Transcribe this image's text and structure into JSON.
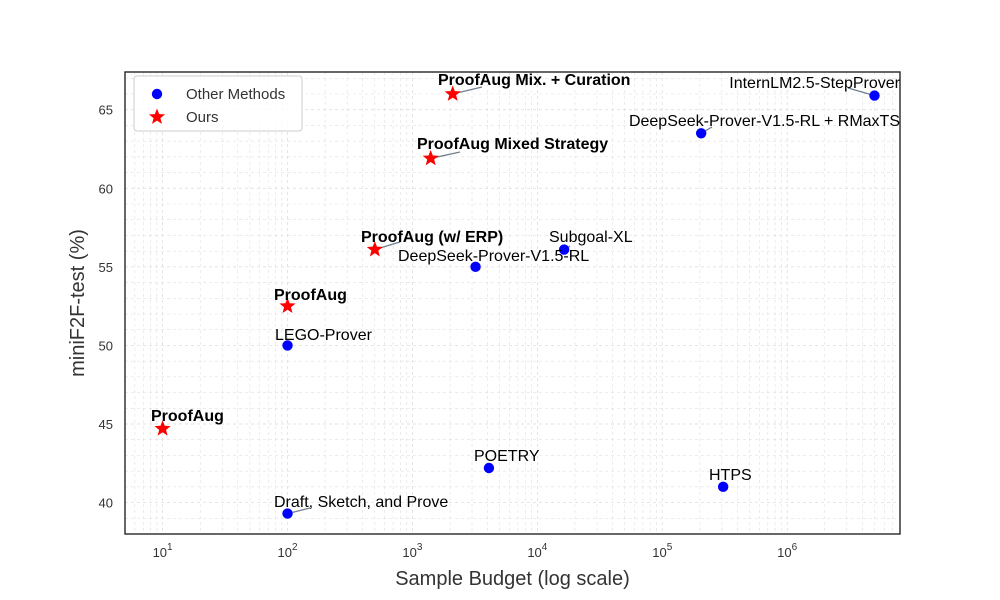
{
  "chart_data": {
    "type": "scatter",
    "xlabel": "Sample Budget (log scale)",
    "ylabel": "miniF2F-test (%)",
    "xscale": "log",
    "xlim": [
      5,
      8000000
    ],
    "ylim": [
      38,
      67.4
    ],
    "grid": true,
    "legend_position": "top-left",
    "x_ticks": [
      {
        "value": 10,
        "exp": "1"
      },
      {
        "value": 100,
        "exp": "2"
      },
      {
        "value": 1000,
        "exp": "3"
      },
      {
        "value": 10000,
        "exp": "4"
      },
      {
        "value": 100000,
        "exp": "5"
      },
      {
        "value": 1000000,
        "exp": "6"
      }
    ],
    "y_ticks": [
      40,
      45,
      50,
      55,
      60,
      65
    ],
    "colors": {
      "other": "#0000ff",
      "ours": "#ff0000",
      "leader": "#708090"
    },
    "series": [
      {
        "name": "Other Methods",
        "marker": "circle",
        "points": [
          {
            "label": "Draft, Sketch, and Prove",
            "x": 100,
            "y": 39.3
          },
          {
            "label": "LEGO-Prover",
            "x": 100,
            "y": 50.0
          },
          {
            "label": "POETRY",
            "x": 4096,
            "y": 42.2
          },
          {
            "label": "DeepSeek-Prover-V1.5-RL",
            "x": 3200,
            "y": 55.0
          },
          {
            "label": "Subgoal-XL",
            "x": 16384,
            "y": 56.1
          },
          {
            "label": "HTPS",
            "x": 307200,
            "y": 41.0
          },
          {
            "label": "DeepSeek-Prover-V1.5-RL + RMaxTS",
            "x": 204800,
            "y": 63.5
          },
          {
            "label": "InternLM2.5-StepProver",
            "x": 5000000,
            "y": 65.9
          }
        ]
      },
      {
        "name": "Ours",
        "marker": "star",
        "points": [
          {
            "label": "ProofAug",
            "x": 10,
            "y": 44.7
          },
          {
            "label": "ProofAug",
            "x": 100,
            "y": 52.5
          },
          {
            "label": "ProofAug (w/ ERP)",
            "x": 500,
            "y": 56.1
          },
          {
            "label": "ProofAug Mixed Strategy",
            "x": 1400,
            "y": 61.9
          },
          {
            "label": "ProofAug Mix. + Curation",
            "x": 2100,
            "y": 66.0
          }
        ]
      }
    ]
  }
}
